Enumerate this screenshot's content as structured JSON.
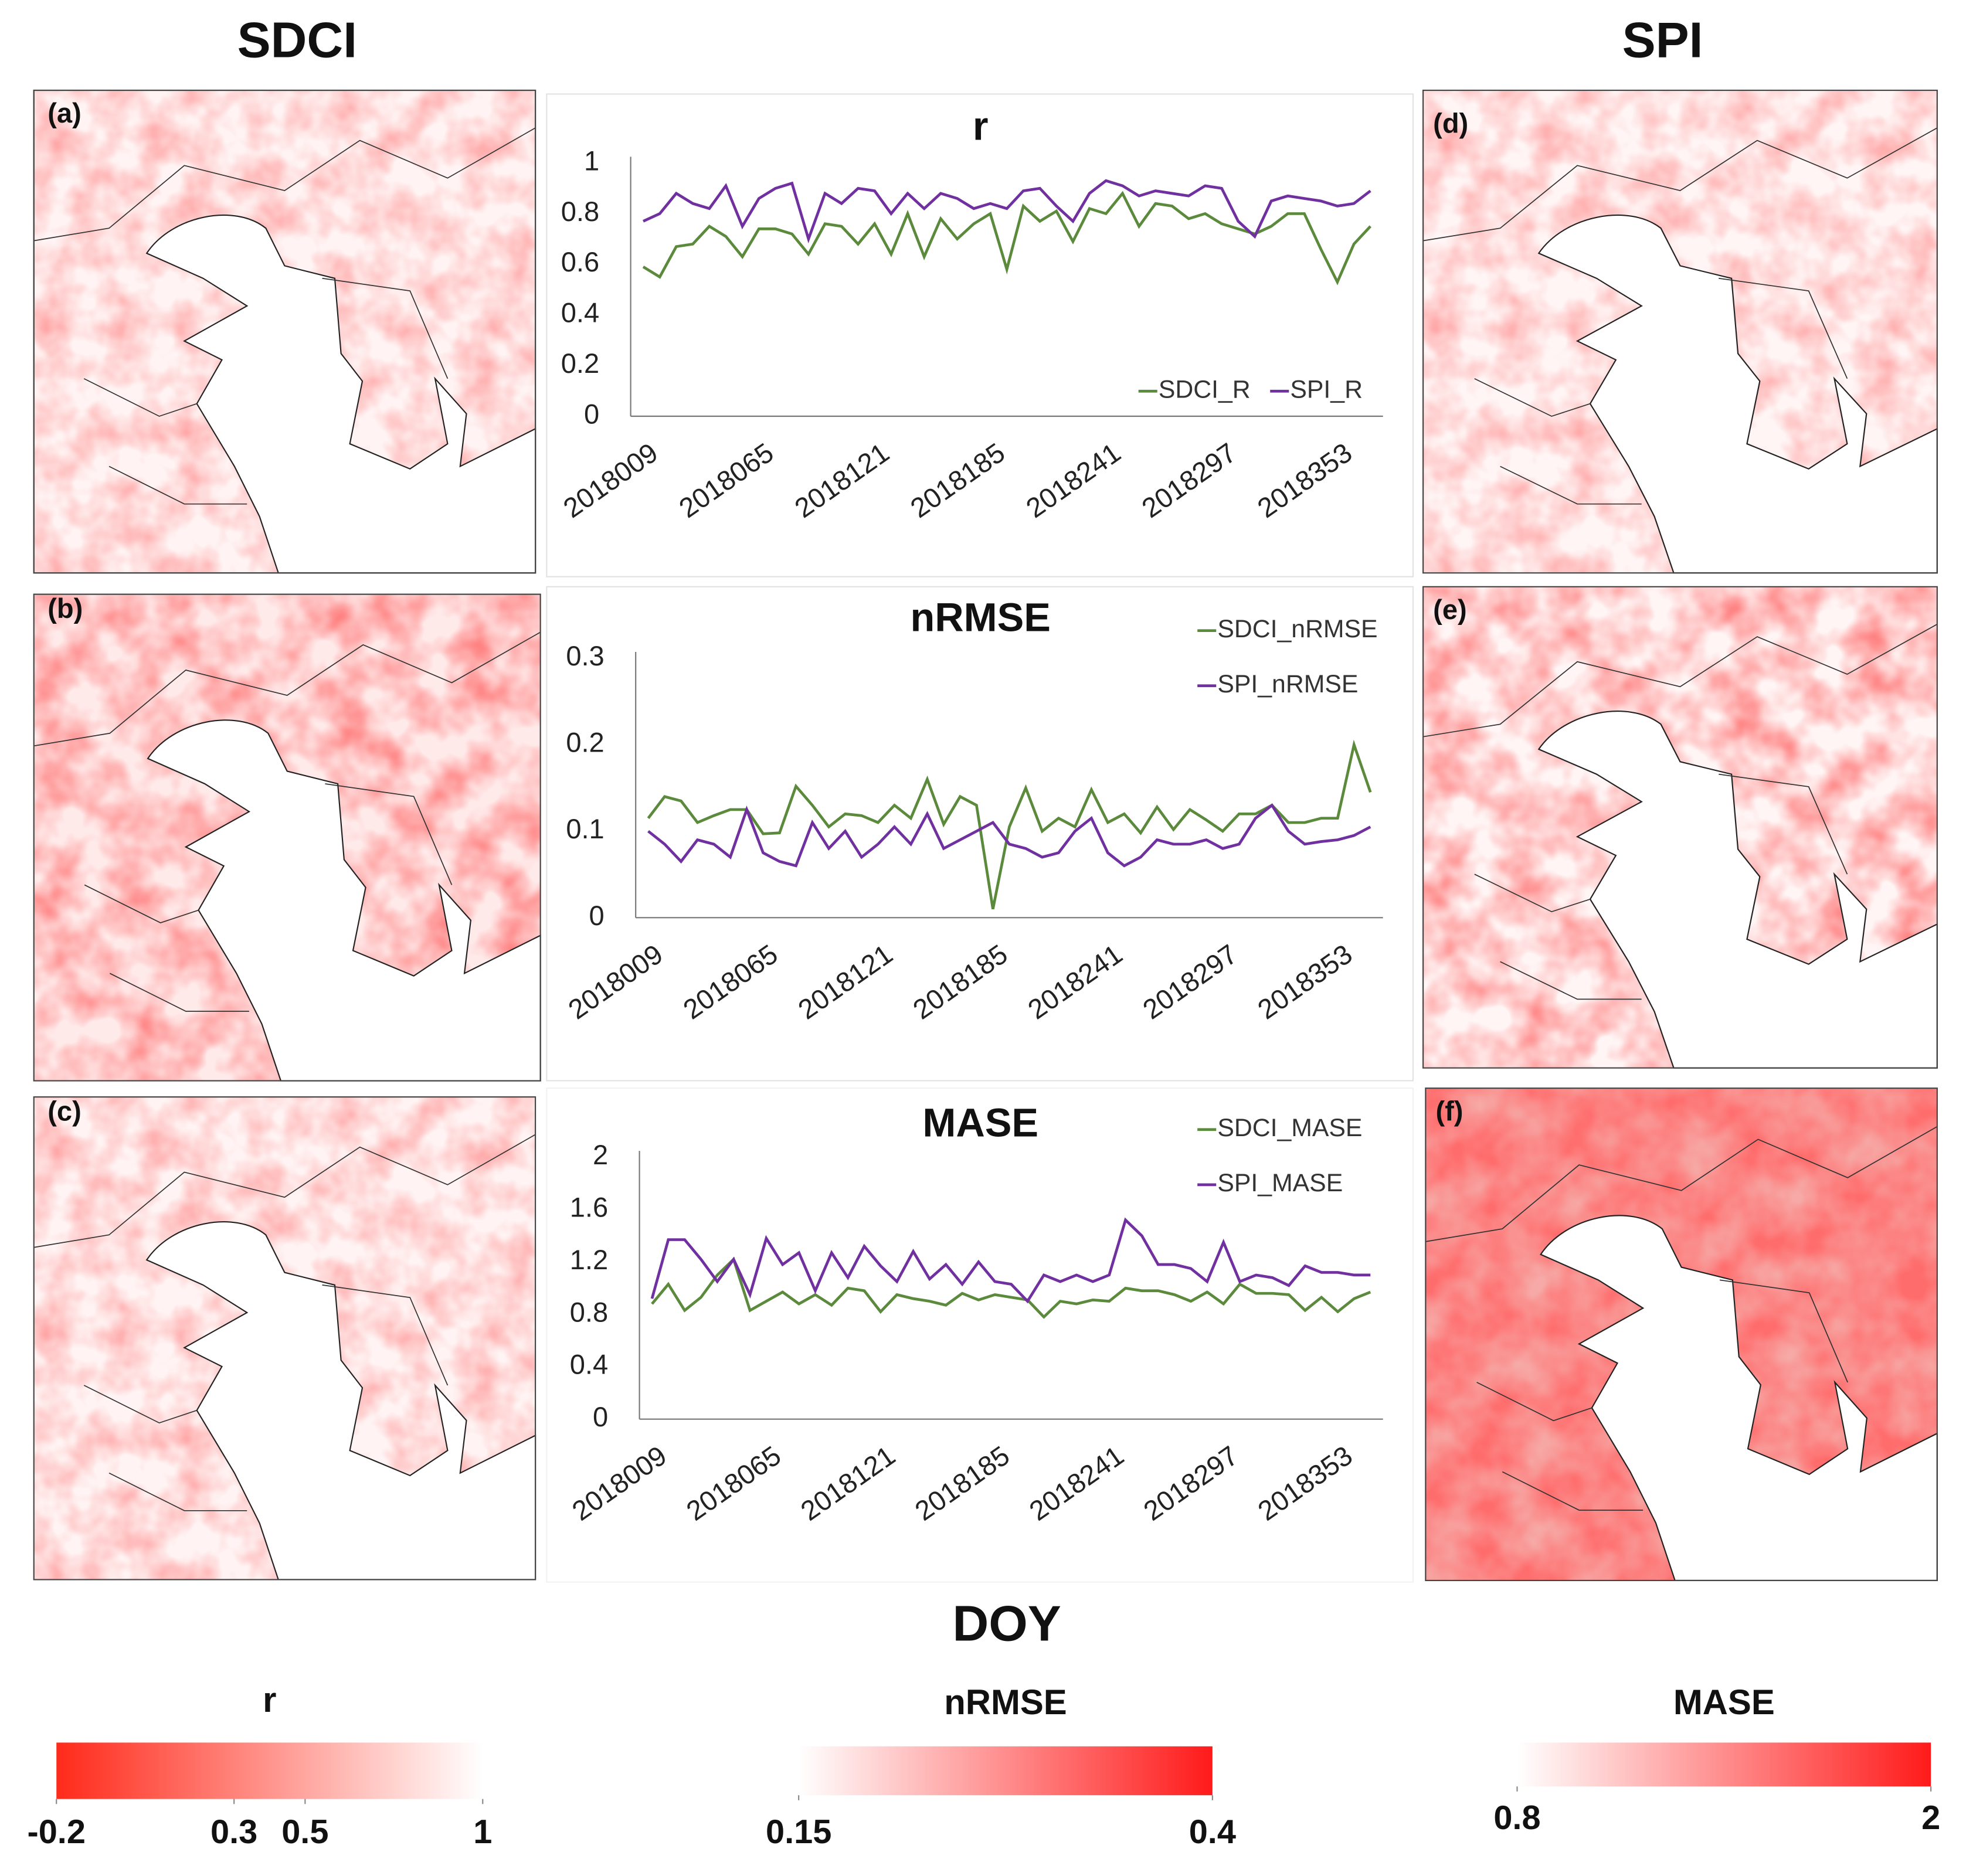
{
  "figure": {
    "column_titles": [
      "SDCI",
      "SPI"
    ],
    "x_label": "DOY",
    "panel_labels": [
      "(a)",
      "(b)",
      "(c)",
      "(d)",
      "(e)",
      "(f)"
    ]
  },
  "chart_data": [
    {
      "type": "line",
      "title": "r",
      "legend": "lower right",
      "grid": false,
      "categories": [
        "2018009",
        null,
        null,
        null,
        null,
        null,
        null,
        "2018065",
        null,
        null,
        null,
        null,
        null,
        null,
        "2018121",
        null,
        null,
        null,
        null,
        null,
        null,
        "2018185",
        null,
        null,
        null,
        null,
        null,
        null,
        "2018241",
        null,
        null,
        null,
        null,
        null,
        null,
        "2018297",
        null,
        null,
        null,
        null,
        null,
        null,
        "2018353",
        null,
        null
      ],
      "ylim": [
        0,
        1
      ],
      "yticks": [
        0,
        0.2,
        0.4,
        0.6,
        0.8,
        1
      ],
      "series": [
        {
          "name": "SDCI_R",
          "color": "#5b8a3c",
          "values": [
            0.59,
            0.55,
            0.67,
            0.68,
            0.75,
            0.71,
            0.63,
            0.74,
            0.74,
            0.72,
            0.64,
            0.76,
            0.75,
            0.68,
            0.76,
            0.64,
            0.8,
            0.63,
            0.78,
            0.7,
            0.76,
            0.8,
            0.58,
            0.83,
            0.77,
            0.81,
            0.69,
            0.82,
            0.8,
            0.88,
            0.75,
            0.84,
            0.83,
            0.78,
            0.8,
            0.76,
            0.74,
            0.72,
            0.75,
            0.8,
            0.8,
            0.66,
            0.53,
            0.68,
            0.75
          ]
        },
        {
          "name": "SPI_R",
          "color": "#7030a0",
          "values": [
            0.77,
            0.8,
            0.88,
            0.84,
            0.82,
            0.91,
            0.75,
            0.86,
            0.9,
            0.92,
            0.7,
            0.88,
            0.84,
            0.9,
            0.89,
            0.8,
            0.88,
            0.82,
            0.88,
            0.86,
            0.82,
            0.84,
            0.82,
            0.89,
            0.9,
            0.83,
            0.77,
            0.88,
            0.93,
            0.91,
            0.87,
            0.89,
            0.88,
            0.87,
            0.91,
            0.9,
            0.77,
            0.71,
            0.85,
            0.87,
            0.86,
            0.85,
            0.83,
            0.84,
            0.89
          ]
        }
      ]
    },
    {
      "type": "line",
      "title": "nRMSE",
      "legend": "upper right",
      "grid": false,
      "categories": [
        "2018009",
        null,
        null,
        null,
        null,
        null,
        null,
        "2018065",
        null,
        null,
        null,
        null,
        null,
        null,
        "2018121",
        null,
        null,
        null,
        null,
        null,
        null,
        "2018185",
        null,
        null,
        null,
        null,
        null,
        null,
        "2018241",
        null,
        null,
        null,
        null,
        null,
        null,
        "2018297",
        null,
        null,
        null,
        null,
        null,
        null,
        "2018353",
        null,
        null
      ],
      "ylim": [
        0,
        0.3
      ],
      "yticks": [
        0,
        0.1,
        0.2,
        0.3
      ],
      "series": [
        {
          "name": "SDCI_nRMSE",
          "color": "#5b8a3c",
          "values": [
            0.115,
            0.14,
            0.135,
            0.11,
            0.118,
            0.125,
            0.125,
            0.097,
            0.098,
            0.152,
            0.13,
            0.105,
            0.12,
            0.118,
            0.11,
            0.13,
            0.115,
            0.16,
            0.108,
            0.14,
            0.13,
            0.01,
            0.105,
            0.15,
            0.1,
            0.115,
            0.105,
            0.148,
            0.11,
            0.12,
            0.098,
            0.128,
            0.102,
            0.125,
            0.113,
            0.1,
            0.12,
            0.12,
            0.13,
            0.11,
            0.11,
            0.115,
            0.115,
            0.2,
            0.145
          ]
        },
        {
          "name": "SPI_nRMSE",
          "color": "#7030a0",
          "values": [
            0.1,
            0.085,
            0.065,
            0.09,
            0.085,
            0.07,
            0.125,
            0.075,
            0.065,
            0.06,
            0.11,
            0.08,
            0.1,
            0.07,
            0.085,
            0.105,
            0.085,
            0.12,
            0.08,
            0.09,
            0.1,
            0.11,
            0.085,
            0.08,
            0.07,
            0.075,
            0.1,
            0.115,
            0.075,
            0.06,
            0.07,
            0.09,
            0.085,
            0.085,
            0.09,
            0.08,
            0.085,
            0.115,
            0.13,
            0.1,
            0.085,
            0.088,
            0.09,
            0.095,
            0.105
          ]
        }
      ]
    },
    {
      "type": "line",
      "title": "MASE",
      "legend": "upper right",
      "grid": false,
      "categories": [
        "2018009",
        null,
        null,
        null,
        null,
        null,
        null,
        "2018065",
        null,
        null,
        null,
        null,
        null,
        null,
        "2018121",
        null,
        null,
        null,
        null,
        null,
        null,
        "2018185",
        null,
        null,
        null,
        null,
        null,
        null,
        "2018241",
        null,
        null,
        null,
        null,
        null,
        null,
        "2018297",
        null,
        null,
        null,
        null,
        null,
        null,
        "2018353",
        null,
        null
      ],
      "ylim": [
        0,
        2
      ],
      "yticks": [
        0,
        0.4,
        0.8,
        1.2,
        1.6,
        2
      ],
      "series": [
        {
          "name": "SDCI_MASE",
          "color": "#5b8a3c",
          "values": [
            0.88,
            1.03,
            0.83,
            0.93,
            1.1,
            1.22,
            0.83,
            0.9,
            0.97,
            0.88,
            0.95,
            0.87,
            1.0,
            0.98,
            0.82,
            0.95,
            0.92,
            0.9,
            0.87,
            0.96,
            0.91,
            0.95,
            0.93,
            0.91,
            0.78,
            0.9,
            0.88,
            0.91,
            0.9,
            1.0,
            0.98,
            0.98,
            0.95,
            0.9,
            0.97,
            0.88,
            1.03,
            0.96,
            0.96,
            0.95,
            0.83,
            0.93,
            0.82,
            0.92,
            0.97
          ]
        },
        {
          "name": "SPI_MASE",
          "color": "#7030a0",
          "values": [
            0.92,
            1.37,
            1.37,
            1.22,
            1.05,
            1.22,
            0.95,
            1.38,
            1.18,
            1.27,
            0.98,
            1.27,
            1.08,
            1.32,
            1.17,
            1.05,
            1.28,
            1.07,
            1.18,
            1.03,
            1.2,
            1.05,
            1.03,
            0.9,
            1.1,
            1.05,
            1.1,
            1.05,
            1.1,
            1.52,
            1.4,
            1.18,
            1.18,
            1.15,
            1.05,
            1.35,
            1.05,
            1.1,
            1.08,
            1.02,
            1.17,
            1.12,
            1.12,
            1.1,
            1.1
          ]
        }
      ]
    }
  ],
  "colorbars": [
    {
      "title": "r",
      "lim": [
        -0.2,
        1
      ],
      "ticks": [
        -0.2,
        0.3,
        0.5,
        1
      ],
      "colors": [
        "#ff2a1a",
        "#ffffff"
      ]
    },
    {
      "title": "nRMSE",
      "lim": [
        0.15,
        0.4
      ],
      "ticks": [
        0.15,
        0.4
      ],
      "colors": [
        "#ffffff",
        "#ff1a1a"
      ]
    },
    {
      "title": "MASE",
      "lim": [
        0.8,
        2
      ],
      "ticks": [
        0.8,
        2
      ],
      "colors": [
        "#ffffff",
        "#ff1a1a"
      ]
    }
  ]
}
